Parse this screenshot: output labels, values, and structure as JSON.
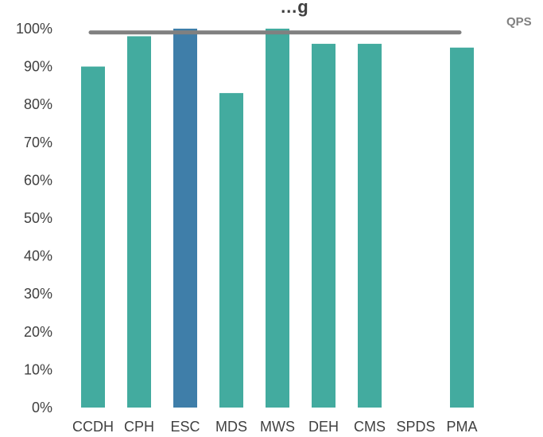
{
  "chart_data": {
    "type": "bar",
    "title": "…g",
    "categories": [
      "CCDH",
      "CPH",
      "ESC",
      "MDS",
      "MWS",
      "DEH",
      "CMS",
      "SPDS",
      "PMA"
    ],
    "values": [
      0.9,
      0.98,
      1.0,
      0.83,
      1.0,
      0.96,
      0.96,
      null,
      0.95
    ],
    "highlight_category": "ESC",
    "ylim": [
      0,
      1
    ],
    "yticks": [
      0,
      0.1,
      0.2,
      0.3,
      0.4,
      0.5,
      0.6,
      0.7,
      0.8,
      0.9,
      1.0
    ],
    "ytick_labels": [
      "0%",
      "10%",
      "20%",
      "30%",
      "40%",
      "50%",
      "60%",
      "70%",
      "80%",
      "90%",
      "100%"
    ],
    "reference_line": {
      "name": "QPS",
      "value": 0.99
    },
    "legend": {
      "entries": [
        "QPS"
      ],
      "position": "top-right"
    },
    "grid": false,
    "colors": {
      "bar": "#43ab9f",
      "highlight": "#3f7ea9",
      "reference_line": "#808080",
      "text": "#404040"
    }
  }
}
